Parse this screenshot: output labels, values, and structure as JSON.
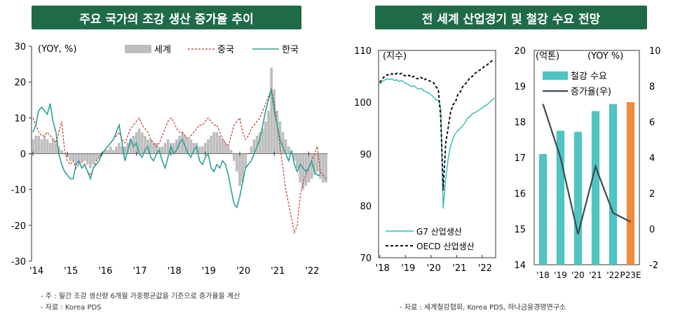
{
  "panels": {
    "left_title": "주요 국가의 조강 생산 증가율 추이",
    "right_title": "전 세계 산업경기 및 철강 수요 전망"
  },
  "notes": {
    "left_note1": "- 주 : 월간 조강 생산량 6개월 가중평균값을 기준으로 증가율을 계산",
    "left_note2": "- 자료 : Korea PDS",
    "right_note": "- 자료 : 세계철강협회, Korea PDS, 하나금융경영연구소"
  },
  "colors": {
    "world": "#bdbdbd",
    "china": "#c0392b",
    "korea": "#2aa198",
    "g7": "#3fbfb3",
    "oecd": "#111111",
    "steel": "#4fc4c0",
    "steel_forecast": "#f08a3c",
    "growth": "#3a4a55",
    "title_bg": "#1f6b47"
  },
  "chart_data": [
    {
      "type": "line",
      "title": "주요 국가의 조강 생산 증가율 추이",
      "unit_label": "(YOY, %)",
      "ylim": [
        -30,
        30
      ],
      "yticks": [
        "30",
        "20",
        "10",
        "0",
        "-10",
        "-20",
        "-30"
      ],
      "xticks": [
        "'14",
        "'15",
        "'16",
        "'17",
        "'18",
        "'19",
        "'20",
        "'21",
        "'22"
      ],
      "x_start": 2014.0,
      "x_step": 0.0833,
      "legend": [
        "세계",
        "중국",
        "한국"
      ],
      "series": [
        {
          "name": "세계",
          "style": "bars",
          "values": [
            4,
            5,
            5,
            4,
            5,
            4,
            3,
            4,
            3,
            2,
            1,
            0,
            -1,
            -2,
            -2,
            -3,
            -3,
            -2,
            -2,
            -3,
            -4,
            -3,
            -2,
            -1,
            0,
            1,
            1,
            2,
            1,
            2,
            3,
            2,
            2,
            3,
            4,
            5,
            6,
            7,
            6,
            5,
            4,
            4,
            3,
            3,
            2,
            2,
            3,
            4,
            3,
            3,
            4,
            5,
            6,
            5,
            4,
            4,
            3,
            3,
            2,
            2,
            3,
            4,
            5,
            6,
            6,
            5,
            4,
            3,
            2,
            1,
            -2,
            -5,
            -9,
            -8,
            -4,
            0,
            2,
            4,
            5,
            6,
            7,
            9,
            12,
            24,
            18,
            12,
            9,
            6,
            4,
            2,
            0,
            -2,
            -4,
            -8,
            -10,
            -9,
            -8,
            -7,
            -6,
            -5,
            -7,
            -8,
            -8
          ]
        },
        {
          "name": "중국",
          "style": "dashed",
          "values": [
            10,
            8,
            6,
            5,
            5,
            6,
            5,
            4,
            3,
            6,
            9,
            1,
            -2,
            -3,
            -2,
            -4,
            -3,
            -2,
            -3,
            -5,
            -6,
            -4,
            -2,
            -1,
            0,
            1,
            2,
            3,
            4,
            5,
            6,
            4,
            3,
            5,
            7,
            8,
            9,
            10,
            8,
            7,
            6,
            4,
            3,
            2,
            3,
            5,
            7,
            9,
            10,
            9,
            7,
            6,
            6,
            5,
            4,
            5,
            6,
            7,
            8,
            8,
            9,
            10,
            9,
            8,
            8,
            6,
            4,
            3,
            2,
            5,
            8,
            9,
            10,
            6,
            4,
            5,
            7,
            8,
            9,
            10,
            12,
            14,
            16,
            18,
            14,
            8,
            2,
            -4,
            -10,
            -14,
            -18,
            -22,
            -20,
            -12,
            -8,
            -6,
            -4,
            -2,
            0,
            2,
            -5,
            -6,
            -7
          ]
        },
        {
          "name": "한국",
          "style": "solid",
          "values": [
            6,
            8,
            12,
            13,
            12,
            11,
            14,
            9,
            6,
            0,
            -3,
            -5,
            -6,
            -7,
            -7,
            -3,
            -2,
            -4,
            -3,
            -5,
            -7,
            -4,
            -3,
            -2,
            0,
            1,
            2,
            3,
            4,
            6,
            8,
            3,
            -2,
            1,
            4,
            2,
            3,
            0,
            -1,
            1,
            2,
            -1,
            -2,
            0,
            1,
            -2,
            -4,
            -1,
            2,
            0,
            1,
            3,
            4,
            2,
            0,
            -1,
            1,
            2,
            -2,
            -3,
            -1,
            0,
            -4,
            -5,
            -3,
            -4,
            -2,
            -3,
            -6,
            -10,
            -14,
            -15,
            -12,
            -8,
            -4,
            -3,
            -2,
            0,
            2,
            4,
            8,
            12,
            15,
            18,
            12,
            8,
            4,
            2,
            0,
            -2,
            1,
            -3,
            -5,
            -3,
            -4,
            -5,
            -4,
            -2,
            -5,
            -6,
            -6
          ]
        }
      ]
    },
    {
      "type": "line",
      "title": "산업생산",
      "unit_label": "(지수)",
      "ylim": [
        70,
        110
      ],
      "yticks": [
        "110",
        "100",
        "90",
        "80",
        "70"
      ],
      "xticks": [
        "'18",
        "'19",
        "'20",
        "'21",
        "'22"
      ],
      "x_start": 2018.0,
      "x_step": 0.0833,
      "legend": [
        "G7 산업생산",
        "OECD 산업생산"
      ],
      "series": [
        {
          "name": "G7 산업생산",
          "style": "solid",
          "values": [
            103.5,
            104,
            104.3,
            104.5,
            104.4,
            104.5,
            104.2,
            104.3,
            104,
            104.2,
            103.8,
            103.6,
            103.3,
            103,
            103.2,
            102.8,
            102.5,
            102.7,
            102.2,
            102,
            101.8,
            101.5,
            101,
            100.5,
            100.3,
            99,
            79.5,
            85,
            89,
            91.5,
            93,
            94,
            94.5,
            95,
            95.5,
            96,
            97,
            97.2,
            97.8,
            98,
            98.3,
            98.6,
            98.9,
            99.3,
            99.5,
            100,
            100.4,
            100.8
          ]
        },
        {
          "name": "OECD 산업생산",
          "style": "dashed",
          "values": [
            103.8,
            104.5,
            105,
            105.3,
            105.2,
            105.5,
            105.3,
            105.6,
            105.4,
            105.6,
            105.2,
            105,
            105.2,
            104.8,
            105,
            104.6,
            104.5,
            104.8,
            104.3,
            104.5,
            104.2,
            104,
            103.8,
            103,
            102.5,
            97,
            83,
            92,
            95,
            98,
            99.5,
            100,
            101.5,
            102,
            103,
            103.5,
            104,
            104.8,
            105,
            105.5,
            106,
            106.2,
            106.5,
            107,
            107.2,
            107.6,
            108,
            107.8
          ]
        }
      ]
    },
    {
      "type": "bar",
      "title": "철강 수요",
      "unit_label_left": "(억톤)",
      "unit_label_right": "(YOY %)",
      "categories": [
        "'18",
        "'19",
        "'20",
        "'21",
        "'22",
        "P23E"
      ],
      "ylim_left": [
        14,
        20
      ],
      "ylim_right": [
        -2,
        10
      ],
      "yticks_left": [
        "20",
        "19",
        "18",
        "17",
        "16",
        "15",
        "14"
      ],
      "yticks_right": [
        "10",
        "8",
        "6",
        "4",
        "2",
        "0",
        "-2"
      ],
      "legend": [
        "철강 수요",
        "증가율(우)"
      ],
      "series": [
        {
          "name": "철강 수요",
          "axis": "left",
          "values": [
            17.1,
            17.75,
            17.72,
            18.3,
            18.5,
            18.55
          ]
        },
        {
          "name": "증가율(우)",
          "axis": "right",
          "values": [
            7.0,
            4.0,
            -0.3,
            3.5,
            0.9,
            0.4
          ]
        }
      ]
    }
  ]
}
